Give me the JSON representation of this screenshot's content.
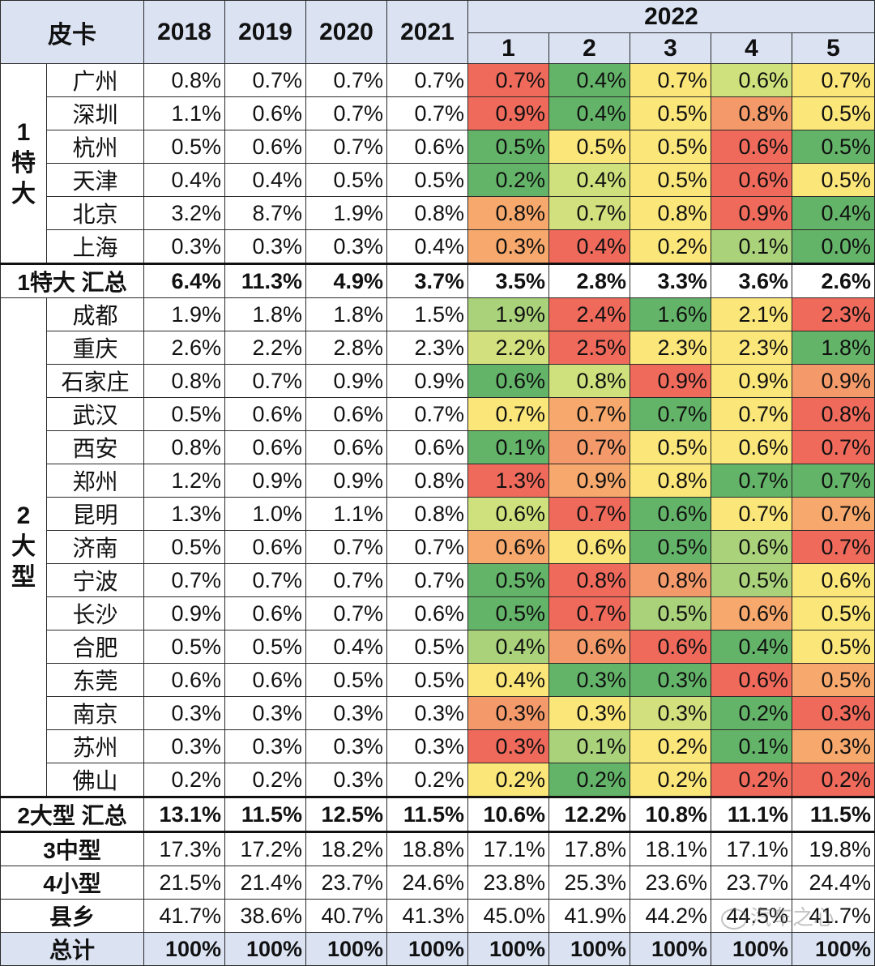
{
  "header": {
    "corner": "皮卡",
    "years": [
      "2018",
      "2019",
      "2020",
      "2021"
    ],
    "year_2022": "2022",
    "months": [
      "1",
      "2",
      "3",
      "4",
      "5"
    ]
  },
  "groups": [
    {
      "label_lines": [
        "1",
        "特",
        "大"
      ],
      "rows": [
        {
          "city": "广州",
          "years": [
            "0.8%",
            "0.7%",
            "0.7%",
            "0.7%"
          ],
          "months": [
            "0.7%",
            "0.4%",
            "0.7%",
            "0.6%",
            "0.7%"
          ],
          "colors": [
            "#f06a5c",
            "#63b468",
            "#fbe67a",
            "#cfe17c",
            "#fbe67a"
          ]
        },
        {
          "city": "深圳",
          "years": [
            "1.1%",
            "0.6%",
            "0.7%",
            "0.7%"
          ],
          "months": [
            "0.9%",
            "0.4%",
            "0.5%",
            "0.8%",
            "0.5%"
          ],
          "colors": [
            "#f06a5c",
            "#63b468",
            "#fbe67a",
            "#f49a6a",
            "#fbe67a"
          ]
        },
        {
          "city": "杭州",
          "years": [
            "0.5%",
            "0.6%",
            "0.7%",
            "0.6%"
          ],
          "months": [
            "0.5%",
            "0.5%",
            "0.5%",
            "0.6%",
            "0.5%"
          ],
          "colors": [
            "#63b468",
            "#fbe67a",
            "#fbe67a",
            "#f06a5c",
            "#63b468"
          ]
        },
        {
          "city": "天津",
          "years": [
            "0.4%",
            "0.4%",
            "0.5%",
            "0.5%"
          ],
          "months": [
            "0.2%",
            "0.4%",
            "0.5%",
            "0.6%",
            "0.5%"
          ],
          "colors": [
            "#63b468",
            "#cfe17c",
            "#fbe67a",
            "#f06a5c",
            "#fbe67a"
          ]
        },
        {
          "city": "北京",
          "years": [
            "3.2%",
            "8.7%",
            "1.9%",
            "0.8%"
          ],
          "months": [
            "0.8%",
            "0.7%",
            "0.8%",
            "0.9%",
            "0.4%"
          ],
          "colors": [
            "#f7a86c",
            "#d2e07d",
            "#fbe67a",
            "#f06a5c",
            "#63b468"
          ]
        },
        {
          "city": "上海",
          "years": [
            "0.3%",
            "0.3%",
            "0.3%",
            "0.4%"
          ],
          "months": [
            "0.3%",
            "0.4%",
            "0.2%",
            "0.1%",
            "0.0%"
          ],
          "colors": [
            "#f7a86c",
            "#f06a5c",
            "#fbe67a",
            "#a9d27a",
            "#63b468"
          ]
        }
      ],
      "summary": {
        "label": "1特大 汇总",
        "values": [
          "6.4%",
          "11.3%",
          "4.9%",
          "3.7%",
          "3.5%",
          "2.8%",
          "3.3%",
          "3.6%",
          "2.6%"
        ]
      }
    },
    {
      "label_lines": [
        "2",
        "大",
        "型"
      ],
      "rows": [
        {
          "city": "成都",
          "years": [
            "1.9%",
            "1.8%",
            "1.8%",
            "1.5%"
          ],
          "months": [
            "1.9%",
            "2.4%",
            "1.6%",
            "2.1%",
            "2.3%"
          ],
          "colors": [
            "#a9d27a",
            "#f06a5c",
            "#63b468",
            "#fbe67a",
            "#f06a5c"
          ]
        },
        {
          "city": "重庆",
          "years": [
            "2.6%",
            "2.2%",
            "2.8%",
            "2.3%"
          ],
          "months": [
            "2.2%",
            "2.5%",
            "2.3%",
            "2.3%",
            "1.8%"
          ],
          "colors": [
            "#d2e07d",
            "#f06a5c",
            "#fbe67a",
            "#fbe67a",
            "#63b468"
          ]
        },
        {
          "city": "石家庄",
          "years": [
            "0.8%",
            "0.7%",
            "0.9%",
            "0.9%"
          ],
          "months": [
            "0.6%",
            "0.8%",
            "0.9%",
            "0.9%",
            "0.9%"
          ],
          "colors": [
            "#63b468",
            "#cfe17c",
            "#f06a5c",
            "#fbe67a",
            "#f49a6a"
          ]
        },
        {
          "city": "武汉",
          "years": [
            "0.5%",
            "0.6%",
            "0.6%",
            "0.7%"
          ],
          "months": [
            "0.7%",
            "0.7%",
            "0.7%",
            "0.7%",
            "0.8%"
          ],
          "colors": [
            "#fbe67a",
            "#f7a86c",
            "#63b468",
            "#fbe67a",
            "#f06a5c"
          ]
        },
        {
          "city": "西安",
          "years": [
            "0.8%",
            "0.6%",
            "0.6%",
            "0.6%"
          ],
          "months": [
            "0.1%",
            "0.7%",
            "0.5%",
            "0.6%",
            "0.7%"
          ],
          "colors": [
            "#63b468",
            "#f49a6a",
            "#fbe67a",
            "#fbe67a",
            "#f06a5c"
          ]
        },
        {
          "city": "郑州",
          "years": [
            "1.2%",
            "0.9%",
            "0.9%",
            "0.8%"
          ],
          "months": [
            "1.3%",
            "0.9%",
            "0.8%",
            "0.7%",
            "0.7%"
          ],
          "colors": [
            "#f06a5c",
            "#f7a86c",
            "#fbe67a",
            "#63b468",
            "#63b468"
          ]
        },
        {
          "city": "昆明",
          "years": [
            "1.3%",
            "1.0%",
            "1.1%",
            "0.8%"
          ],
          "months": [
            "0.6%",
            "0.7%",
            "0.6%",
            "0.7%",
            "0.7%"
          ],
          "colors": [
            "#cfe17c",
            "#f06a5c",
            "#63b468",
            "#fbe67a",
            "#f7a86c"
          ]
        },
        {
          "city": "济南",
          "years": [
            "0.5%",
            "0.6%",
            "0.7%",
            "0.7%"
          ],
          "months": [
            "0.6%",
            "0.6%",
            "0.5%",
            "0.6%",
            "0.7%"
          ],
          "colors": [
            "#f7a86c",
            "#fbe67a",
            "#63b468",
            "#a9d27a",
            "#f06a5c"
          ]
        },
        {
          "city": "宁波",
          "years": [
            "0.7%",
            "0.7%",
            "0.7%",
            "0.7%"
          ],
          "months": [
            "0.5%",
            "0.8%",
            "0.8%",
            "0.5%",
            "0.6%"
          ],
          "colors": [
            "#63b468",
            "#f06a5c",
            "#f49a6a",
            "#a9d27a",
            "#fbe67a"
          ]
        },
        {
          "city": "长沙",
          "years": [
            "0.9%",
            "0.6%",
            "0.7%",
            "0.6%"
          ],
          "months": [
            "0.5%",
            "0.7%",
            "0.5%",
            "0.6%",
            "0.5%"
          ],
          "colors": [
            "#63b468",
            "#f06a5c",
            "#a9d27a",
            "#f7a86c",
            "#fbe67a"
          ]
        },
        {
          "city": "合肥",
          "years": [
            "0.5%",
            "0.5%",
            "0.4%",
            "0.5%"
          ],
          "months": [
            "0.4%",
            "0.6%",
            "0.6%",
            "0.4%",
            "0.5%"
          ],
          "colors": [
            "#a9d27a",
            "#f49a6a",
            "#f06a5c",
            "#63b468",
            "#fbe67a"
          ]
        },
        {
          "city": "东莞",
          "years": [
            "0.6%",
            "0.6%",
            "0.5%",
            "0.5%"
          ],
          "months": [
            "0.4%",
            "0.3%",
            "0.3%",
            "0.6%",
            "0.5%"
          ],
          "colors": [
            "#fbe67a",
            "#63b468",
            "#63b468",
            "#f06a5c",
            "#f7a86c"
          ]
        },
        {
          "city": "南京",
          "years": [
            "0.3%",
            "0.3%",
            "0.3%",
            "0.3%"
          ],
          "months": [
            "0.3%",
            "0.3%",
            "0.3%",
            "0.2%",
            "0.3%"
          ],
          "colors": [
            "#f49a6a",
            "#fbe67a",
            "#d2e07d",
            "#63b468",
            "#f06a5c"
          ]
        },
        {
          "city": "苏州",
          "years": [
            "0.3%",
            "0.3%",
            "0.3%",
            "0.3%"
          ],
          "months": [
            "0.3%",
            "0.1%",
            "0.2%",
            "0.1%",
            "0.3%"
          ],
          "colors": [
            "#f06a5c",
            "#a9d27a",
            "#fbe67a",
            "#63b468",
            "#f7a86c"
          ]
        },
        {
          "city": "佛山",
          "years": [
            "0.2%",
            "0.2%",
            "0.3%",
            "0.2%"
          ],
          "months": [
            "0.2%",
            "0.2%",
            "0.2%",
            "0.2%",
            "0.2%"
          ],
          "colors": [
            "#fbe67a",
            "#63b468",
            "#fbe67a",
            "#f06a5c",
            "#f06a5c"
          ]
        }
      ],
      "summary": {
        "label": "2大型 汇总",
        "values": [
          "13.1%",
          "11.5%",
          "12.5%",
          "11.5%",
          "10.6%",
          "12.2%",
          "10.8%",
          "11.1%",
          "11.5%"
        ]
      }
    }
  ],
  "extra_rows": [
    {
      "label": "3中型",
      "values": [
        "17.3%",
        "17.2%",
        "18.2%",
        "18.8%",
        "17.1%",
        "17.8%",
        "18.1%",
        "17.1%",
        "19.8%"
      ]
    },
    {
      "label": "4小型",
      "values": [
        "21.5%",
        "21.4%",
        "23.7%",
        "24.6%",
        "23.8%",
        "25.3%",
        "23.6%",
        "23.7%",
        "24.4%"
      ]
    },
    {
      "label": "县乡",
      "values": [
        "41.7%",
        "38.6%",
        "40.7%",
        "41.3%",
        "45.0%",
        "41.9%",
        "44.2%",
        "44.5%",
        "41.7%"
      ]
    }
  ],
  "total_row": {
    "label": "总计",
    "values": [
      "100%",
      "100%",
      "100%",
      "100%",
      "100%",
      "100%",
      "100%",
      "100%",
      "100%"
    ]
  },
  "watermark": "汽车之心"
}
